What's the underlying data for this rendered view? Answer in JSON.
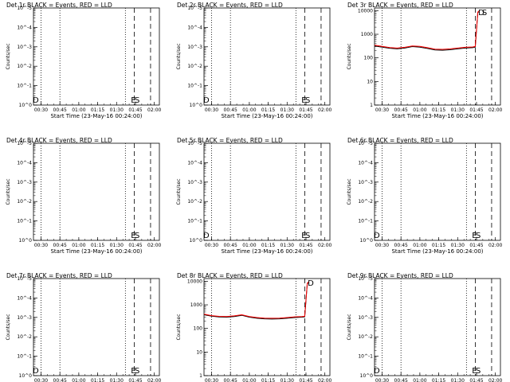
{
  "chart_data": [
    {
      "type": "line",
      "title": "Det 1r BLACK = Events, RED = LLD",
      "ylabel": "Counts/sec",
      "xlabel": "Start Time (23-May-16 00:24:00)",
      "x_ticks": [
        "00:30",
        "00:45",
        "01:00",
        "01:15",
        "01:30",
        "01:45",
        "02:00"
      ],
      "y_ticks": [
        "10^0",
        "10^-1",
        "10^-2",
        "10^-3",
        "10^-4",
        "10^-5"
      ],
      "markers": [
        {
          "label": "D",
          "x": "00:24"
        },
        {
          "label": "E",
          "x": "01:42"
        },
        {
          "label": "S",
          "x": "01:45"
        }
      ],
      "series": []
    },
    {
      "type": "line",
      "title": "Det 2r BLACK = Events, RED = LLD",
      "ylabel": "Counts/sec",
      "xlabel": "Start Time (23-May-16 00:24:00)",
      "x_ticks": [
        "00:30",
        "00:45",
        "01:00",
        "01:15",
        "01:30",
        "01:45",
        "02:00"
      ],
      "y_ticks": [
        "10^0",
        "10^-1",
        "10^-2",
        "10^-3",
        "10^-4",
        "10^-5"
      ],
      "markers": [
        {
          "label": "D",
          "x": "00:24"
        },
        {
          "label": "E",
          "x": "01:42"
        },
        {
          "label": "S",
          "x": "01:45"
        }
      ],
      "series": []
    },
    {
      "type": "line",
      "title": "Det 3r BLACK = Events, RED = LLD",
      "ylabel": "Counts/sec",
      "xlabel": "Start Time (23-May-16 00:24:00)",
      "x_ticks": [
        "00:30",
        "00:45",
        "01:00",
        "01:15",
        "01:30",
        "01:45",
        "02:00"
      ],
      "y_ticks": [
        "1",
        "10",
        "100",
        "1000",
        "10000"
      ],
      "log_range": [
        1,
        13000
      ],
      "markers": [
        {
          "label": "D",
          "x": "01:47"
        },
        {
          "label": "S",
          "x": "01:50"
        }
      ],
      "series": [
        {
          "color": "#000000",
          "x": [
            "00:24",
            "00:30",
            "00:36",
            "00:42",
            "00:48",
            "00:54",
            "01:00",
            "01:06",
            "01:12",
            "01:18",
            "01:24",
            "01:30",
            "01:36",
            "01:42",
            "01:44",
            "01:46",
            "01:47"
          ],
          "y": [
            320,
            285,
            255,
            240,
            260,
            300,
            285,
            250,
            215,
            210,
            220,
            240,
            260,
            270,
            285,
            8200,
            9200
          ]
        },
        {
          "color": "#ff0000",
          "x": [
            "00:24",
            "00:30",
            "00:36",
            "00:42",
            "00:48",
            "00:54",
            "01:00",
            "01:06",
            "01:12",
            "01:18",
            "01:24",
            "01:30",
            "01:36",
            "01:42",
            "01:44",
            "01:46",
            "01:47"
          ],
          "y": [
            345,
            305,
            275,
            260,
            280,
            320,
            305,
            270,
            235,
            230,
            240,
            260,
            280,
            290,
            305,
            8700,
            9700
          ]
        }
      ]
    },
    {
      "type": "line",
      "title": "Det 4r BLACK = Events, RED = LLD",
      "ylabel": "Counts/sec",
      "xlabel": "Start Time (23-May-16 00:24:00)",
      "x_ticks": [
        "00:30",
        "00:45",
        "01:00",
        "01:15",
        "01:30",
        "01:45",
        "02:00"
      ],
      "y_ticks": [
        "10^0",
        "10^-1",
        "10^-2",
        "10^-3",
        "10^-4",
        "10^-5"
      ],
      "markers": [
        {
          "label": "E",
          "x": "01:42"
        },
        {
          "label": "S",
          "x": "01:45"
        }
      ],
      "series": []
    },
    {
      "type": "line",
      "title": "Det 5r BLACK = Events, RED = LLD",
      "ylabel": "Counts/sec",
      "xlabel": "Start Time (23-May-16 00:24:00)",
      "x_ticks": [
        "00:30",
        "00:45",
        "01:00",
        "01:15",
        "01:30",
        "01:45",
        "02:00"
      ],
      "y_ticks": [
        "10^0",
        "10^-1",
        "10^-2",
        "10^-3",
        "10^-4",
        "10^-5"
      ],
      "markers": [
        {
          "label": "D",
          "x": "00:24"
        },
        {
          "label": "E",
          "x": "01:42"
        },
        {
          "label": "S",
          "x": "01:45"
        }
      ],
      "series": []
    },
    {
      "type": "line",
      "title": "Det 6r BLACK = Events, RED = LLD",
      "ylabel": "Counts/sec",
      "xlabel": "Start Time (23-May-16 00:24:00)",
      "x_ticks": [
        "00:30",
        "00:45",
        "01:00",
        "01:15",
        "01:30",
        "01:45",
        "02:00"
      ],
      "y_ticks": [
        "10^0",
        "10^-1",
        "10^-2",
        "10^-3",
        "10^-4",
        "10^-5"
      ],
      "markers": [
        {
          "label": "D",
          "x": "00:24"
        },
        {
          "label": "E",
          "x": "01:42"
        },
        {
          "label": "S",
          "x": "01:45"
        }
      ],
      "series": []
    },
    {
      "type": "line",
      "title": "Det 7r BLACK = Events, RED = LLD",
      "ylabel": "Counts/sec",
      "xlabel": "Start Time (23-May-16 00:24:00)",
      "x_ticks": [
        "00:30",
        "00:45",
        "01:00",
        "01:15",
        "01:30",
        "01:45",
        "02:00"
      ],
      "y_ticks": [
        "10^0",
        "10^-1",
        "10^-2",
        "10^-3",
        "10^-4",
        "10^-5"
      ],
      "markers": [
        {
          "label": "D",
          "x": "00:24"
        },
        {
          "label": "E",
          "x": "01:42"
        },
        {
          "label": "S",
          "x": "01:45"
        }
      ],
      "series": []
    },
    {
      "type": "line",
      "title": "Det 8r BLACK = Events, RED = LLD",
      "ylabel": "Counts/sec",
      "xlabel": "Start Time (23-May-16 00:24:00)",
      "x_ticks": [
        "00:30",
        "00:45",
        "01:00",
        "01:15",
        "01:30",
        "01:45",
        "02:00"
      ],
      "y_ticks": [
        "1",
        "10",
        "100",
        "1000",
        "10000"
      ],
      "log_range": [
        1,
        13000
      ],
      "markers": [
        {
          "label": "D",
          "x": "01:47"
        }
      ],
      "series": [
        {
          "color": "#000000",
          "x": [
            "00:24",
            "00:30",
            "00:36",
            "00:42",
            "00:48",
            "00:54",
            "01:00",
            "01:06",
            "01:12",
            "01:18",
            "01:24",
            "01:30",
            "01:36",
            "01:42",
            "01:44",
            "01:46",
            "01:47"
          ],
          "y": [
            380,
            330,
            305,
            300,
            320,
            360,
            300,
            270,
            255,
            250,
            255,
            270,
            290,
            300,
            310,
            7800,
            8800
          ]
        },
        {
          "color": "#ff0000",
          "x": [
            "00:24",
            "00:30",
            "00:36",
            "00:42",
            "00:48",
            "00:54",
            "01:00",
            "01:06",
            "01:12",
            "01:18",
            "01:24",
            "01:30",
            "01:36",
            "01:42",
            "01:44",
            "01:46",
            "01:47"
          ],
          "y": [
            405,
            350,
            325,
            320,
            340,
            380,
            320,
            290,
            275,
            270,
            275,
            290,
            310,
            320,
            330,
            8300,
            9300
          ]
        }
      ]
    },
    {
      "type": "line",
      "title": "Det 9r BLACK = Events, RED = LLD",
      "ylabel": "Counts/sec",
      "xlabel": "Start Time (23-May-16 00:24:00)",
      "x_ticks": [
        "00:30",
        "00:45",
        "01:00",
        "01:15",
        "01:30",
        "01:45",
        "02:00"
      ],
      "y_ticks": [
        "10^0",
        "10^-1",
        "10^-2",
        "10^-3",
        "10^-4",
        "10^-5"
      ],
      "markers": [
        {
          "label": "D",
          "x": "00:24"
        },
        {
          "label": "E",
          "x": "01:42"
        },
        {
          "label": "S",
          "x": "01:45"
        }
      ],
      "series": []
    }
  ]
}
